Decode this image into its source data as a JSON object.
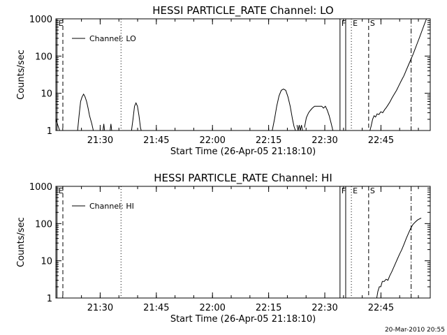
{
  "footer": {
    "timestamp": "20-Mar-2010 20:55"
  },
  "chart_data": [
    {
      "type": "line",
      "title": "HESSI PARTICLE_RATE Channel: LO",
      "xlabel": "Start Time (26-Apr-05 21:18:10)",
      "ylabel": "Counts/sec",
      "y_scale": "log",
      "ylim": [
        1,
        1000
      ],
      "xlim_minutes": [
        0,
        100
      ],
      "xtick_labels": [
        "21:30",
        "21:45",
        "22:00",
        "22:15",
        "22:30",
        "22:45"
      ],
      "ytick_labels": [
        "1",
        "10",
        "100",
        "1000"
      ],
      "legend": {
        "entry": "Channel: LO",
        "position": "top-left"
      },
      "vlines": [
        {
          "time": "21:18:28",
          "style": "solid",
          "flag": "E"
        },
        {
          "time": "21:20:02",
          "style": "dashed",
          "flag": ""
        },
        {
          "time": "21:35:34",
          "style": "dotted",
          "flag": ""
        },
        {
          "time": "22:34:04",
          "style": "solid",
          "flag": "F"
        },
        {
          "time": "22:35:35",
          "style": "solid",
          "flag": ""
        },
        {
          "time": "22:37:06",
          "style": "dotted",
          "flag": "E"
        },
        {
          "time": "22:41:43",
          "style": "dashed",
          "flag": "S"
        },
        {
          "time": "22:53:04",
          "style": "dashdot",
          "flag": ""
        }
      ],
      "series": [
        {
          "name": "Channel: LO",
          "segments": [
            [
              [
                0.0,
                2.0
              ],
              [
                0.5,
                1.4
              ],
              [
                1.0,
                1.0
              ]
            ],
            [
              [
                5.8,
                1.0
              ],
              [
                6.2,
                2.5
              ],
              [
                6.6,
                6.0
              ],
              [
                7.0,
                8.0
              ],
              [
                7.4,
                9.5
              ],
              [
                7.8,
                8.0
              ],
              [
                8.2,
                6.0
              ],
              [
                8.6,
                4.0
              ],
              [
                9.0,
                2.5
              ],
              [
                9.6,
                1.5
              ],
              [
                10.0,
                1.0
              ]
            ],
            [
              [
                12.6,
                1.0
              ],
              [
                12.8,
                1.5
              ],
              [
                13.0,
                1.0
              ]
            ],
            [
              [
                14.5,
                1.0
              ],
              [
                14.7,
                1.5
              ],
              [
                14.9,
                1.0
              ]
            ],
            [
              [
                20.2,
                1.0
              ],
              [
                20.6,
                2.0
              ],
              [
                21.0,
                4.5
              ],
              [
                21.4,
                5.5
              ],
              [
                21.8,
                4.5
              ],
              [
                22.2,
                2.5
              ],
              [
                22.6,
                1.2
              ],
              [
                22.8,
                1.0
              ]
            ],
            [
              [
                57.8,
                1.0
              ],
              [
                58.4,
                2.0
              ],
              [
                59.0,
                4.5
              ],
              [
                59.6,
                8.5
              ],
              [
                60.2,
                12.0
              ],
              [
                60.8,
                13.0
              ],
              [
                61.4,
                12.0
              ],
              [
                62.0,
                8.0
              ],
              [
                62.6,
                4.5
              ],
              [
                63.2,
                2.0
              ],
              [
                63.6,
                1.3
              ],
              [
                64.0,
                1.0
              ]
            ],
            [
              [
                64.4,
                1.4
              ],
              [
                64.7,
                1.0
              ],
              [
                65.0,
                1.4
              ],
              [
                65.3,
                1.0
              ],
              [
                65.6,
                1.4
              ],
              [
                65.9,
                1.0
              ]
            ],
            [
              [
                66.4,
                1.2
              ],
              [
                66.9,
                2.2
              ],
              [
                67.5,
                3.0
              ],
              [
                68.0,
                3.5
              ],
              [
                68.5,
                4.0
              ],
              [
                69.1,
                4.5
              ],
              [
                70.5,
                4.5
              ],
              [
                71.0,
                4.5
              ],
              [
                71.5,
                4.0
              ],
              [
                72.0,
                4.5
              ],
              [
                72.5,
                3.5
              ],
              [
                73.0,
                2.5
              ],
              [
                73.5,
                1.6
              ],
              [
                74.0,
                1.0
              ]
            ],
            [
              [
                83.9,
                1.0
              ],
              [
                84.2,
                1.3
              ],
              [
                84.6,
                2.0
              ],
              [
                85.0,
                2.5
              ],
              [
                85.4,
                2.3
              ],
              [
                85.8,
                2.8
              ],
              [
                86.3,
                2.7
              ],
              [
                86.8,
                3.2
              ],
              [
                87.3,
                3.0
              ],
              [
                87.8,
                3.6
              ],
              [
                88.3,
                4.2
              ],
              [
                88.8,
                5.0
              ],
              [
                89.3,
                6.0
              ],
              [
                89.8,
                7.5
              ],
              [
                90.4,
                9.5
              ],
              [
                91.0,
                12.0
              ],
              [
                91.6,
                16.0
              ],
              [
                92.3,
                22.0
              ],
              [
                93.0,
                30.0
              ],
              [
                93.6,
                42.0
              ],
              [
                94.2,
                58.0
              ],
              [
                94.8,
                80.0
              ],
              [
                95.4,
                110.0
              ],
              [
                96.0,
                160.0
              ],
              [
                96.6,
                230.0
              ],
              [
                97.2,
                330.0
              ],
              [
                97.8,
                480.0
              ],
              [
                98.4,
                700.0
              ],
              [
                99.0,
                1000.0
              ]
            ]
          ]
        }
      ]
    },
    {
      "type": "line",
      "title": "HESSI PARTICLE_RATE Channel: HI",
      "xlabel": "Start Time (26-Apr-05 21:18:10)",
      "ylabel": "Counts/sec",
      "y_scale": "log",
      "ylim": [
        1,
        1000
      ],
      "xlim_minutes": [
        0,
        100
      ],
      "xtick_labels": [
        "21:30",
        "21:45",
        "22:00",
        "22:15",
        "22:30",
        "22:45"
      ],
      "ytick_labels": [
        "1",
        "10",
        "100",
        "1000"
      ],
      "legend": {
        "entry": "Channel: HI",
        "position": "top-left"
      },
      "vlines": [
        {
          "time": "21:18:28",
          "style": "solid",
          "flag": "E"
        },
        {
          "time": "21:20:02",
          "style": "dashed",
          "flag": ""
        },
        {
          "time": "21:35:34",
          "style": "dotted",
          "flag": ""
        },
        {
          "time": "22:34:04",
          "style": "solid",
          "flag": "F"
        },
        {
          "time": "22:35:35",
          "style": "solid",
          "flag": ""
        },
        {
          "time": "22:37:06",
          "style": "dotted",
          "flag": "E"
        },
        {
          "time": "22:41:43",
          "style": "dashed",
          "flag": "S"
        },
        {
          "time": "22:53:04",
          "style": "dashdot",
          "flag": ""
        }
      ],
      "series": [
        {
          "name": "Channel: HI",
          "segments": [
            [
              [
                85.7,
                1.0
              ],
              [
                86.0,
                1.5
              ],
              [
                86.4,
                2.0
              ],
              [
                86.8,
                2.0
              ],
              [
                87.2,
                2.8
              ],
              [
                87.7,
                2.8
              ],
              [
                88.2,
                3.2
              ],
              [
                88.7,
                3.0
              ],
              [
                89.2,
                4.0
              ],
              [
                89.7,
                5.0
              ],
              [
                90.2,
                6.5
              ],
              [
                90.7,
                8.5
              ],
              [
                91.2,
                11.0
              ],
              [
                91.8,
                15.0
              ],
              [
                92.4,
                20.0
              ],
              [
                93.0,
                28.0
              ],
              [
                93.6,
                40.0
              ],
              [
                94.2,
                55.0
              ],
              [
                94.8,
                75.0
              ],
              [
                95.4,
                95.0
              ],
              [
                96.0,
                110.0
              ],
              [
                96.6,
                125.0
              ],
              [
                97.2,
                135.0
              ],
              [
                97.6,
                140.0
              ]
            ]
          ]
        }
      ]
    }
  ]
}
